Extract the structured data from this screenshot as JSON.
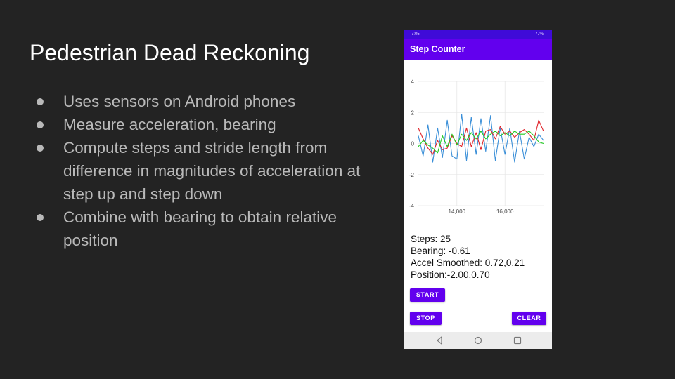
{
  "slide": {
    "title": "Pedestrian Dead Reckoning",
    "bullets": [
      "Uses sensors on Android phones",
      "Measure acceleration, bearing",
      "Compute steps and stride length from difference in magnitudes of acceleration at step up and step down",
      "Combine with bearing to obtain relative position"
    ]
  },
  "phone": {
    "status_time": "7:05",
    "status_right": "77%",
    "app_title": "Step Counter",
    "readouts": {
      "steps": "Steps: 25",
      "bearing": "Bearing: -0.61",
      "accel": "Accel Smoothed: 0.72,0.21",
      "position": "Position:-2.00,0.70"
    },
    "buttons": {
      "start": "START",
      "stop": "STOP",
      "clear": "CLEAR"
    },
    "nav_icons": [
      "back-icon",
      "home-icon",
      "recents-icon"
    ]
  },
  "chart_data": {
    "type": "line",
    "ylim": [
      -4,
      4
    ],
    "xlim": [
      12400,
      17600
    ],
    "y_ticks": [
      "4",
      "2",
      "0",
      "-2",
      "-4"
    ],
    "x_ticks": [
      {
        "value": 14000,
        "label": "14,000"
      },
      {
        "value": 16000,
        "label": "16,000"
      }
    ],
    "grid": true,
    "series": [
      {
        "color": "#3a8fd8",
        "x": [
          12400,
          12600,
          12800,
          13000,
          13200,
          13400,
          13600,
          13800,
          14000,
          14200,
          14400,
          14600,
          14800,
          15000,
          15200,
          15400,
          15600,
          15800,
          16000,
          16200,
          16400,
          16600,
          16800,
          17000,
          17200,
          17400,
          17600
        ],
        "y": [
          0.5,
          -0.8,
          1.2,
          -1.2,
          1.0,
          -0.9,
          1.5,
          -0.8,
          -1.0,
          1.9,
          -1.1,
          1.7,
          -0.7,
          1.6,
          -0.5,
          1.8,
          -1.1,
          1.0,
          -0.7,
          1.0,
          -1.2,
          0.8,
          -1.0,
          0.4,
          -0.2,
          0.6,
          0.2
        ]
      },
      {
        "color": "#e0242b",
        "x": [
          12400,
          12600,
          12800,
          13000,
          13200,
          13400,
          13600,
          13800,
          14000,
          14200,
          14400,
          14600,
          14800,
          15000,
          15200,
          15400,
          15600,
          15800,
          16000,
          16200,
          16400,
          16600,
          16800,
          17000,
          17200,
          17400,
          17600
        ],
        "y": [
          1.0,
          0.3,
          -0.3,
          -0.7,
          0.2,
          -0.4,
          -0.3,
          0.5,
          0.0,
          -0.2,
          1.0,
          -0.2,
          0.7,
          -0.4,
          0.8,
          0.9,
          0.3,
          1.1,
          0.6,
          0.8,
          0.4,
          0.7,
          0.9,
          0.6,
          0.2,
          1.5,
          0.8
        ]
      },
      {
        "color": "#22cc22",
        "x": [
          12400,
          12600,
          12800,
          13000,
          13200,
          13400,
          13600,
          13800,
          14000,
          14200,
          14400,
          14600,
          14800,
          15000,
          15200,
          15400,
          15600,
          15800,
          16000,
          16200,
          16400,
          16600,
          16800,
          17000,
          17200,
          17400,
          17600
        ],
        "y": [
          -0.2,
          0.2,
          -0.1,
          -0.3,
          -0.6,
          0.5,
          -0.2,
          0.6,
          -0.1,
          0.6,
          0.2,
          0.7,
          0.3,
          0.8,
          0.3,
          0.6,
          0.8,
          0.5,
          0.7,
          0.5,
          0.8,
          0.6,
          0.6,
          0.8,
          0.5,
          0.1,
          0.0
        ]
      }
    ]
  }
}
